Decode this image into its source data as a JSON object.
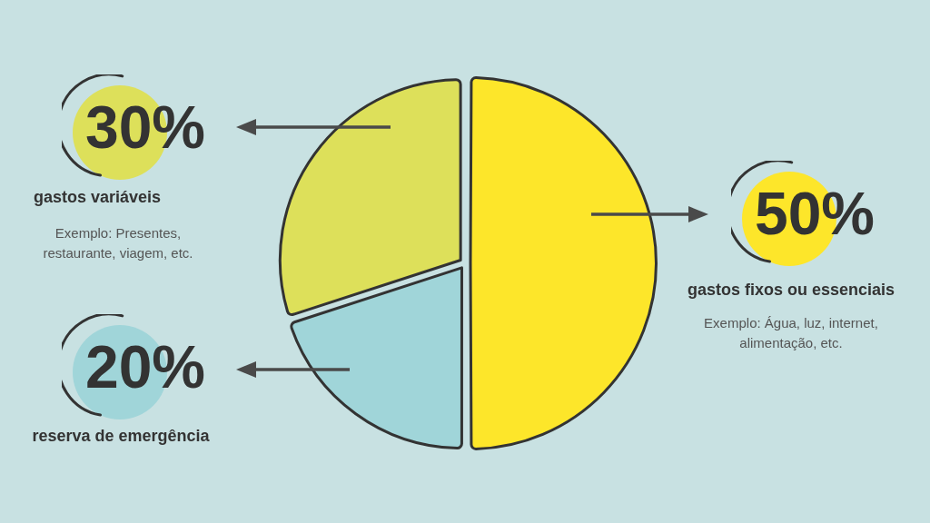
{
  "chart_data": {
    "type": "pie",
    "categories": [
      "gastos fixos ou essenciais",
      "reserva de emergência",
      "gastos variáveis"
    ],
    "values": [
      50,
      20,
      30
    ],
    "colors": [
      "#fde62a",
      "#a0d5d9",
      "#dde05a"
    ],
    "value_labels": [
      "50%",
      "20%",
      "30%"
    ],
    "annotations": [
      "Exemplo: Água, luz, internet, alimentação, etc.",
      "Exemplo: Presentes, restaurante, viagem, etc."
    ]
  }
}
